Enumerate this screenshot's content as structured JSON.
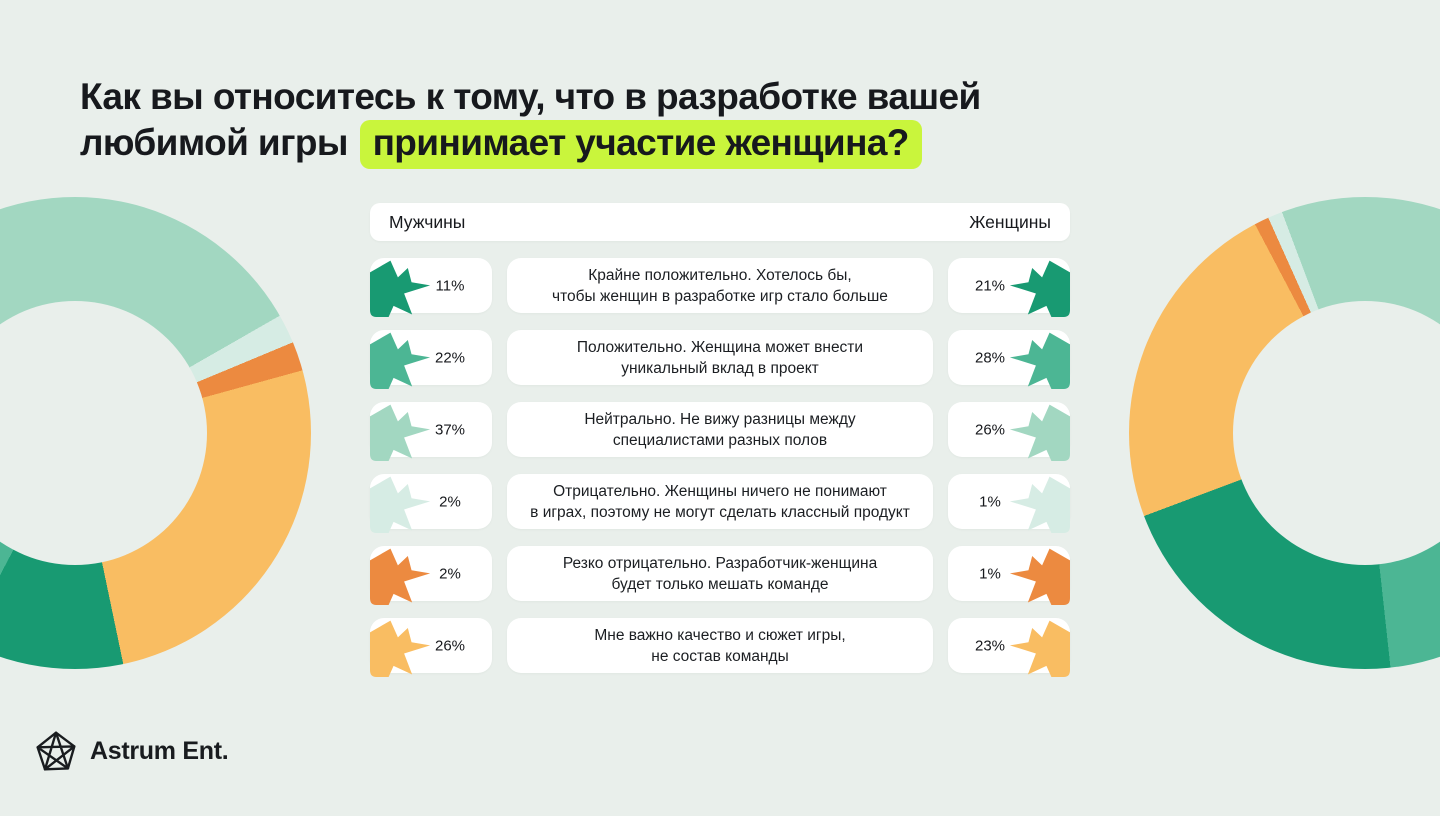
{
  "title": {
    "line1": "Как вы относитесь к тому, что в разработке вашей",
    "line2_prefix": "любимой игры ",
    "line2_highlight": "принимает участие женщина?",
    "highlight_color": "#c9f53c"
  },
  "table": {
    "header_left": "Мужчины",
    "header_right": "Женщины",
    "rows": [
      {
        "icon": "splat-icon",
        "color": "#189a72",
        "men": "11%",
        "women": "21%",
        "lines": [
          "Крайне положительно. Хотелось бы,",
          "чтобы женщин в разработке игр стало больше"
        ]
      },
      {
        "icon": "splat-icon",
        "color": "#4cb694",
        "men": "22%",
        "women": "28%",
        "lines": [
          "Положительно. Женщина может внести",
          "уникальный вклад в проект"
        ]
      },
      {
        "icon": "splat-icon",
        "color": "#a2d7c1",
        "men": "37%",
        "women": "26%",
        "lines": [
          "Нейтрально. Не вижу разницы между",
          "специалистами разных полов"
        ]
      },
      {
        "icon": "splat-icon",
        "color": "#d6ece4",
        "men": "2%",
        "women": "1%",
        "lines": [
          "Отрицательно. Женщины ничего не понимают",
          "в играх, поэтому не могут сделать классный продукт"
        ]
      },
      {
        "icon": "splat-icon",
        "color": "#ec8a40",
        "men": "2%",
        "women": "1%",
        "lines": [
          "Резко отрицательно. Разработчик-женщина",
          "будет только мешать команде"
        ]
      },
      {
        "icon": "splat-icon",
        "color": "#f9bd62",
        "men": "26%",
        "women": "23%",
        "lines": [
          "Мне важно качество и сюжет игры,",
          "не состав команды"
        ]
      }
    ]
  },
  "chart_data": [
    {
      "type": "pie",
      "donut": true,
      "title": "Мужчины",
      "legend_position": "none",
      "start_angle_deg": 287,
      "segments": [
        {
          "label": "Нейтрально. Не вижу разницы между специалистами разных полов",
          "value": 37,
          "color": "#a2d7c1"
        },
        {
          "label": "Отрицательно. Женщины ничего не понимают в играх, поэтому не могут сделать классный продукт",
          "value": 2,
          "color": "#d6ece4"
        },
        {
          "label": "Резко отрицательно. Разработчик-женщина будет только мешать команде",
          "value": 2,
          "color": "#ec8a40"
        },
        {
          "label": "Мне важно качество и сюжет игры, не состав команды",
          "value": 26,
          "color": "#f9bd62"
        },
        {
          "label": "Крайне положительно. Хотелось бы, чтобы женщин в разработке игр стало больше",
          "value": 11,
          "color": "#189a72"
        },
        {
          "label": "Положительно. Женщина может внести уникальный вклад в проект",
          "value": 22,
          "color": "#4cb694"
        }
      ]
    },
    {
      "type": "pie",
      "donut": true,
      "title": "Женщины",
      "legend_position": "none",
      "mirrored": true,
      "start_angle_deg": 287,
      "segments": [
        {
          "label": "Нейтрально. Не вижу разницы между специалистами разных полов",
          "value": 26,
          "color": "#a2d7c1"
        },
        {
          "label": "Отрицательно. Женщины ничего не понимают в играх, поэтому не могут сделать классный продукт",
          "value": 1,
          "color": "#d6ece4"
        },
        {
          "label": "Резко отрицательно. Разработчик-женщина будет только мешать команде",
          "value": 1,
          "color": "#ec8a40"
        },
        {
          "label": "Мне важно качество и сюжет игры, не состав команды",
          "value": 23,
          "color": "#f9bd62"
        },
        {
          "label": "Крайне положительно. Хотелось бы, чтобы женщин в разработке игр стало больше",
          "value": 21,
          "color": "#189a72"
        },
        {
          "label": "Положительно. Женщина может внести уникальный вклад в проект",
          "value": 28,
          "color": "#4cb694"
        }
      ]
    }
  ],
  "logo": {
    "text": "Astrum Ent.",
    "icon": "pentagon-star-icon"
  },
  "colors": {
    "background": "#e9efeb",
    "card": "#ffffff",
    "text": "#17191d",
    "extremely_positive": "#189a72",
    "positive": "#4cb694",
    "neutral": "#a2d7c1",
    "negative": "#d6ece4",
    "sharply_negative": "#ec8a40",
    "quality_matters": "#f9bd62"
  }
}
